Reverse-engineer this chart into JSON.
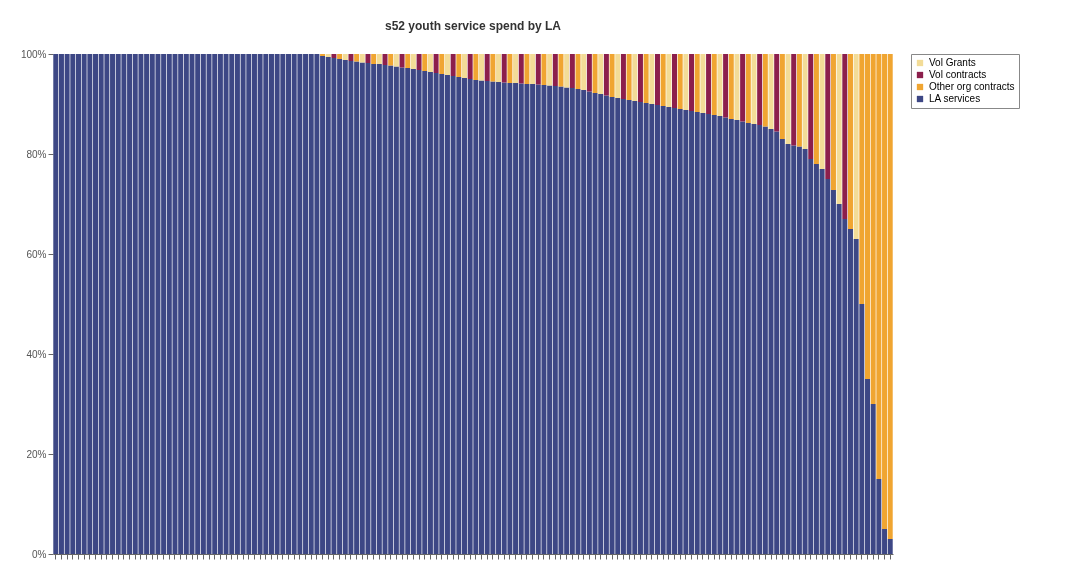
{
  "chart_data": {
    "type": "bar",
    "title": "s52 youth service spend by LA",
    "stacked": true,
    "legend": "right",
    "grid": false,
    "categories": [
      null,
      null,
      null,
      null,
      null,
      null,
      null,
      null,
      null,
      null,
      null,
      null,
      null,
      null,
      null,
      null,
      null,
      null,
      null,
      null,
      null,
      null,
      null,
      null,
      null,
      null,
      null,
      null,
      null,
      null,
      null,
      null,
      null,
      null,
      null,
      null,
      null,
      null,
      null,
      null,
      null,
      null,
      null,
      null,
      null,
      null,
      null,
      null,
      null,
      null,
      null,
      null,
      null,
      null,
      null,
      null,
      null,
      null,
      null,
      null,
      null,
      null,
      null,
      null,
      null,
      null,
      null,
      null,
      null,
      null,
      null,
      null,
      null,
      null,
      null,
      null,
      null,
      null,
      null,
      null,
      null,
      null,
      null,
      null,
      null,
      null,
      null,
      null,
      null,
      null,
      null,
      null,
      null,
      null,
      null,
      null,
      null,
      null,
      null,
      null,
      null,
      null,
      null,
      null,
      null,
      null,
      null,
      null,
      null,
      null,
      null,
      null,
      null,
      null,
      null,
      null,
      null,
      null,
      null,
      null,
      null,
      null,
      null,
      null,
      null,
      null,
      null,
      null,
      null,
      null,
      null,
      null,
      null,
      null,
      null,
      null,
      null,
      null,
      null,
      null,
      null,
      null,
      null,
      null,
      null,
      null,
      null,
      null
    ],
    "ylim": [
      0,
      100
    ],
    "yticks": [
      {
        "value": 0,
        "label": "0%"
      },
      {
        "value": 20,
        "label": "20%"
      },
      {
        "value": 40,
        "label": "40%"
      },
      {
        "value": 60,
        "label": "60%"
      },
      {
        "value": 80,
        "label": "80%"
      },
      {
        "value": 100,
        "label": "100%"
      }
    ],
    "series": [
      {
        "name": "LA services",
        "color": "#3d4785",
        "values": [
          100,
          100,
          100,
          100,
          100,
          100,
          100,
          100,
          100,
          100,
          100,
          100,
          100,
          100,
          100,
          100,
          100,
          100,
          100,
          100,
          100,
          100,
          100,
          100,
          100,
          100,
          100,
          100,
          100,
          100,
          100,
          100,
          100,
          100,
          100,
          100,
          100,
          100,
          100,
          100,
          100,
          100,
          100,
          100,
          100,
          100,
          100,
          99.6,
          99.4,
          99.2,
          99,
          98.8,
          98.6,
          98.5,
          98.3,
          98.2,
          98,
          98,
          97.8,
          97.7,
          97.5,
          97.3,
          97.2,
          97,
          96.8,
          96.6,
          96.4,
          96.2,
          96,
          95.8,
          95.6,
          95.4,
          95.2,
          95,
          94.8,
          94.7,
          94.6,
          94.5,
          94.4,
          94.3,
          94.2,
          94.2,
          94.1,
          94,
          94,
          93.9,
          93.8,
          93.7,
          93.6,
          93.5,
          93.3,
          93.2,
          93,
          92.8,
          92.5,
          92.2,
          92,
          91.7,
          91.4,
          91.2,
          91,
          90.8,
          90.6,
          90.4,
          90.2,
          90,
          89.8,
          89.6,
          89.4,
          89.2,
          89,
          88.8,
          88.6,
          88.4,
          88.2,
          88,
          87.8,
          87.6,
          87.3,
          87,
          86.8,
          86.5,
          86.2,
          86,
          85.8,
          85.5,
          85,
          84.5,
          83,
          82,
          81.7,
          81.5,
          81,
          79,
          78,
          77,
          75,
          72.8,
          70,
          67,
          65,
          63,
          50,
          35,
          30,
          15,
          5,
          3
        ]
      },
      {
        "name": "Other org contracts",
        "color": "#f0a531",
        "values": [
          0,
          0,
          0,
          0,
          0,
          0,
          0,
          0,
          0,
          0,
          0,
          0,
          0,
          0,
          0,
          0,
          0,
          0,
          0,
          0,
          0,
          0,
          0,
          0,
          0,
          0,
          0,
          0,
          0,
          0,
          0,
          0,
          0,
          0,
          0,
          0,
          0,
          0,
          0,
          0,
          0,
          0,
          0,
          0,
          0,
          0,
          0,
          0.4,
          0,
          0,
          1,
          0,
          0,
          1.5,
          0,
          0,
          2,
          0,
          0,
          2.3,
          0,
          0,
          2.8,
          0,
          0,
          3.4,
          0,
          0,
          4,
          0,
          0,
          4.6,
          0,
          0,
          5.2,
          0,
          0,
          5.5,
          0,
          0,
          5.8,
          0,
          0,
          6,
          0,
          0,
          6.2,
          0,
          0,
          6.5,
          0,
          0,
          7,
          0,
          0,
          7.8,
          0,
          0,
          8.6,
          0,
          0,
          9.2,
          0,
          0,
          9.8,
          0,
          0,
          10.4,
          0,
          0,
          11,
          0,
          0,
          11.6,
          0,
          0,
          12.2,
          0,
          0,
          13,
          0,
          0,
          13.8,
          0,
          0,
          14.5,
          0,
          0,
          17,
          0,
          0,
          18.5,
          0,
          0,
          22,
          0,
          0,
          27.2,
          0,
          0,
          35,
          0,
          50,
          65,
          70,
          85,
          95,
          97
        ]
      },
      {
        "name": "Vol contracts",
        "color": "#8c1f4c",
        "values": [
          0,
          0,
          0,
          0,
          0,
          0,
          0,
          0,
          0,
          0,
          0,
          0,
          0,
          0,
          0,
          0,
          0,
          0,
          0,
          0,
          0,
          0,
          0,
          0,
          0,
          0,
          0,
          0,
          0,
          0,
          0,
          0,
          0,
          0,
          0,
          0,
          0,
          0,
          0,
          0,
          0,
          0,
          0,
          0,
          0,
          0,
          0,
          0,
          0,
          0.8,
          0,
          0,
          1.4,
          0,
          0,
          1.8,
          0,
          0,
          2.2,
          0,
          0,
          2.7,
          0,
          0,
          3.2,
          0,
          0,
          3.8,
          0,
          0,
          4.4,
          0,
          0,
          5,
          0,
          0,
          5.4,
          0,
          0,
          5.7,
          0,
          0,
          5.9,
          0,
          0,
          6.1,
          0,
          0,
          6.4,
          0,
          0,
          6.8,
          0,
          0,
          7.5,
          0,
          0,
          8.3,
          0,
          0,
          9,
          0,
          0,
          9.6,
          0,
          0,
          10.2,
          0,
          0,
          10.8,
          0,
          0,
          11.4,
          0,
          0,
          12,
          0,
          0,
          12.7,
          0,
          0,
          13.5,
          0,
          0,
          14.2,
          0,
          0,
          15.5,
          0,
          0,
          18.3,
          0,
          0,
          21,
          0,
          0,
          25,
          0,
          0,
          33,
          0,
          0,
          0,
          0,
          0,
          0,
          0,
          0
        ]
      },
      {
        "name": "Vol Grants",
        "color": "#f3dc97",
        "values": [
          0,
          0,
          0,
          0,
          0,
          0,
          0,
          0,
          0,
          0,
          0,
          0,
          0,
          0,
          0,
          0,
          0,
          0,
          0,
          0,
          0,
          0,
          0,
          0,
          0,
          0,
          0,
          0,
          0,
          0,
          0,
          0,
          0,
          0,
          0,
          0,
          0,
          0,
          0,
          0,
          0,
          0,
          0,
          0,
          0,
          0,
          0,
          0,
          0.6,
          0,
          0,
          1.2,
          0,
          0,
          1.7,
          0,
          0,
          2,
          0,
          0,
          2.5,
          0,
          0,
          3,
          0,
          0,
          3.6,
          0,
          0,
          4.2,
          0,
          0,
          4.8,
          0,
          0,
          5.3,
          0,
          0,
          5.6,
          0,
          0,
          5.8,
          0,
          0,
          6,
          0,
          0,
          6.3,
          0,
          0,
          6.7,
          0,
          0,
          7.2,
          0,
          0,
          8,
          0,
          0,
          8.8,
          0,
          0,
          9.4,
          0,
          0,
          10,
          0,
          0,
          10.6,
          0,
          0,
          11.2,
          0,
          0,
          11.8,
          0,
          0,
          12.4,
          0,
          0,
          13.2,
          0,
          0,
          14,
          0,
          0,
          15,
          0,
          0,
          18,
          0,
          0,
          19,
          0,
          0,
          23,
          0,
          0,
          30,
          0,
          0,
          37,
          0,
          0,
          0,
          0,
          0,
          0
        ]
      }
    ]
  }
}
